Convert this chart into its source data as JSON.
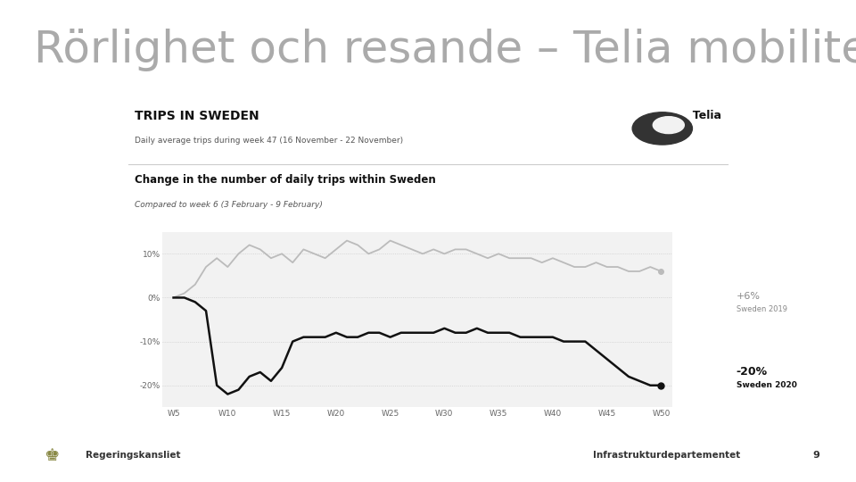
{
  "title": "Rörlighet och resande – Telia mobilitetsdata",
  "title_color": "#aaaaaa",
  "title_fontsize": 36,
  "footer_left": "Regeringskansliet",
  "footer_right": "Infrastrukturdepartementet",
  "footer_page": "9",
  "card_bg": "#f2f2f2",
  "card_top_title": "TRIPS IN SWEDEN",
  "card_subtitle": "Daily average trips during week 47 (16 November - 22 November)",
  "chart_title": "Change in the number of daily trips within Sweden",
  "chart_subtitle": "Compared to week 6 (3 February - 9 February)",
  "x_ticks": [
    "W5",
    "W10",
    "W15",
    "W20",
    "W25",
    "W30",
    "W35",
    "W40",
    "W45",
    "W50"
  ],
  "x_tick_vals": [
    5,
    10,
    15,
    20,
    25,
    30,
    35,
    40,
    45,
    50
  ],
  "y_ticks": [
    "10%",
    "0%",
    "-10%",
    "-20%"
  ],
  "y_values": [
    10,
    0,
    -10,
    -20
  ],
  "sweden2019_label": "+6%",
  "sweden2019_sublabel": "Sweden 2019",
  "sweden2020_label": "-20%",
  "sweden2020_sublabel": "Sweden 2020",
  "line2019_color": "#bbbbbb",
  "line2020_color": "#111111",
  "line2019_x": [
    5,
    6,
    7,
    8,
    9,
    10,
    11,
    12,
    13,
    14,
    15,
    16,
    17,
    18,
    19,
    20,
    21,
    22,
    23,
    24,
    25,
    26,
    27,
    28,
    29,
    30,
    31,
    32,
    33,
    34,
    35,
    36,
    37,
    38,
    39,
    40,
    41,
    42,
    43,
    44,
    45,
    46,
    47,
    48,
    49,
    50
  ],
  "line2019_y": [
    0,
    1,
    3,
    7,
    9,
    7,
    10,
    12,
    11,
    9,
    10,
    8,
    11,
    10,
    9,
    11,
    13,
    12,
    10,
    11,
    13,
    12,
    11,
    10,
    11,
    10,
    11,
    11,
    10,
    9,
    10,
    9,
    9,
    9,
    8,
    9,
    8,
    7,
    7,
    8,
    7,
    7,
    6,
    6,
    7,
    6
  ],
  "line2020_x": [
    5,
    6,
    7,
    8,
    9,
    10,
    11,
    12,
    13,
    14,
    15,
    16,
    17,
    18,
    19,
    20,
    21,
    22,
    23,
    24,
    25,
    26,
    27,
    28,
    29,
    30,
    31,
    32,
    33,
    34,
    35,
    36,
    37,
    38,
    39,
    40,
    41,
    42,
    43,
    44,
    45,
    46,
    47,
    48,
    49,
    50
  ],
  "line2020_y": [
    0,
    0,
    -1,
    -3,
    -20,
    -22,
    -21,
    -18,
    -17,
    -19,
    -16,
    -10,
    -9,
    -9,
    -9,
    -8,
    -9,
    -9,
    -8,
    -8,
    -9,
    -8,
    -8,
    -8,
    -8,
    -7,
    -8,
    -8,
    -7,
    -8,
    -8,
    -8,
    -9,
    -9,
    -9,
    -9,
    -10,
    -10,
    -10,
    -12,
    -14,
    -16,
    -18,
    -19,
    -20,
    -20
  ],
  "bg_color": "#ffffff"
}
